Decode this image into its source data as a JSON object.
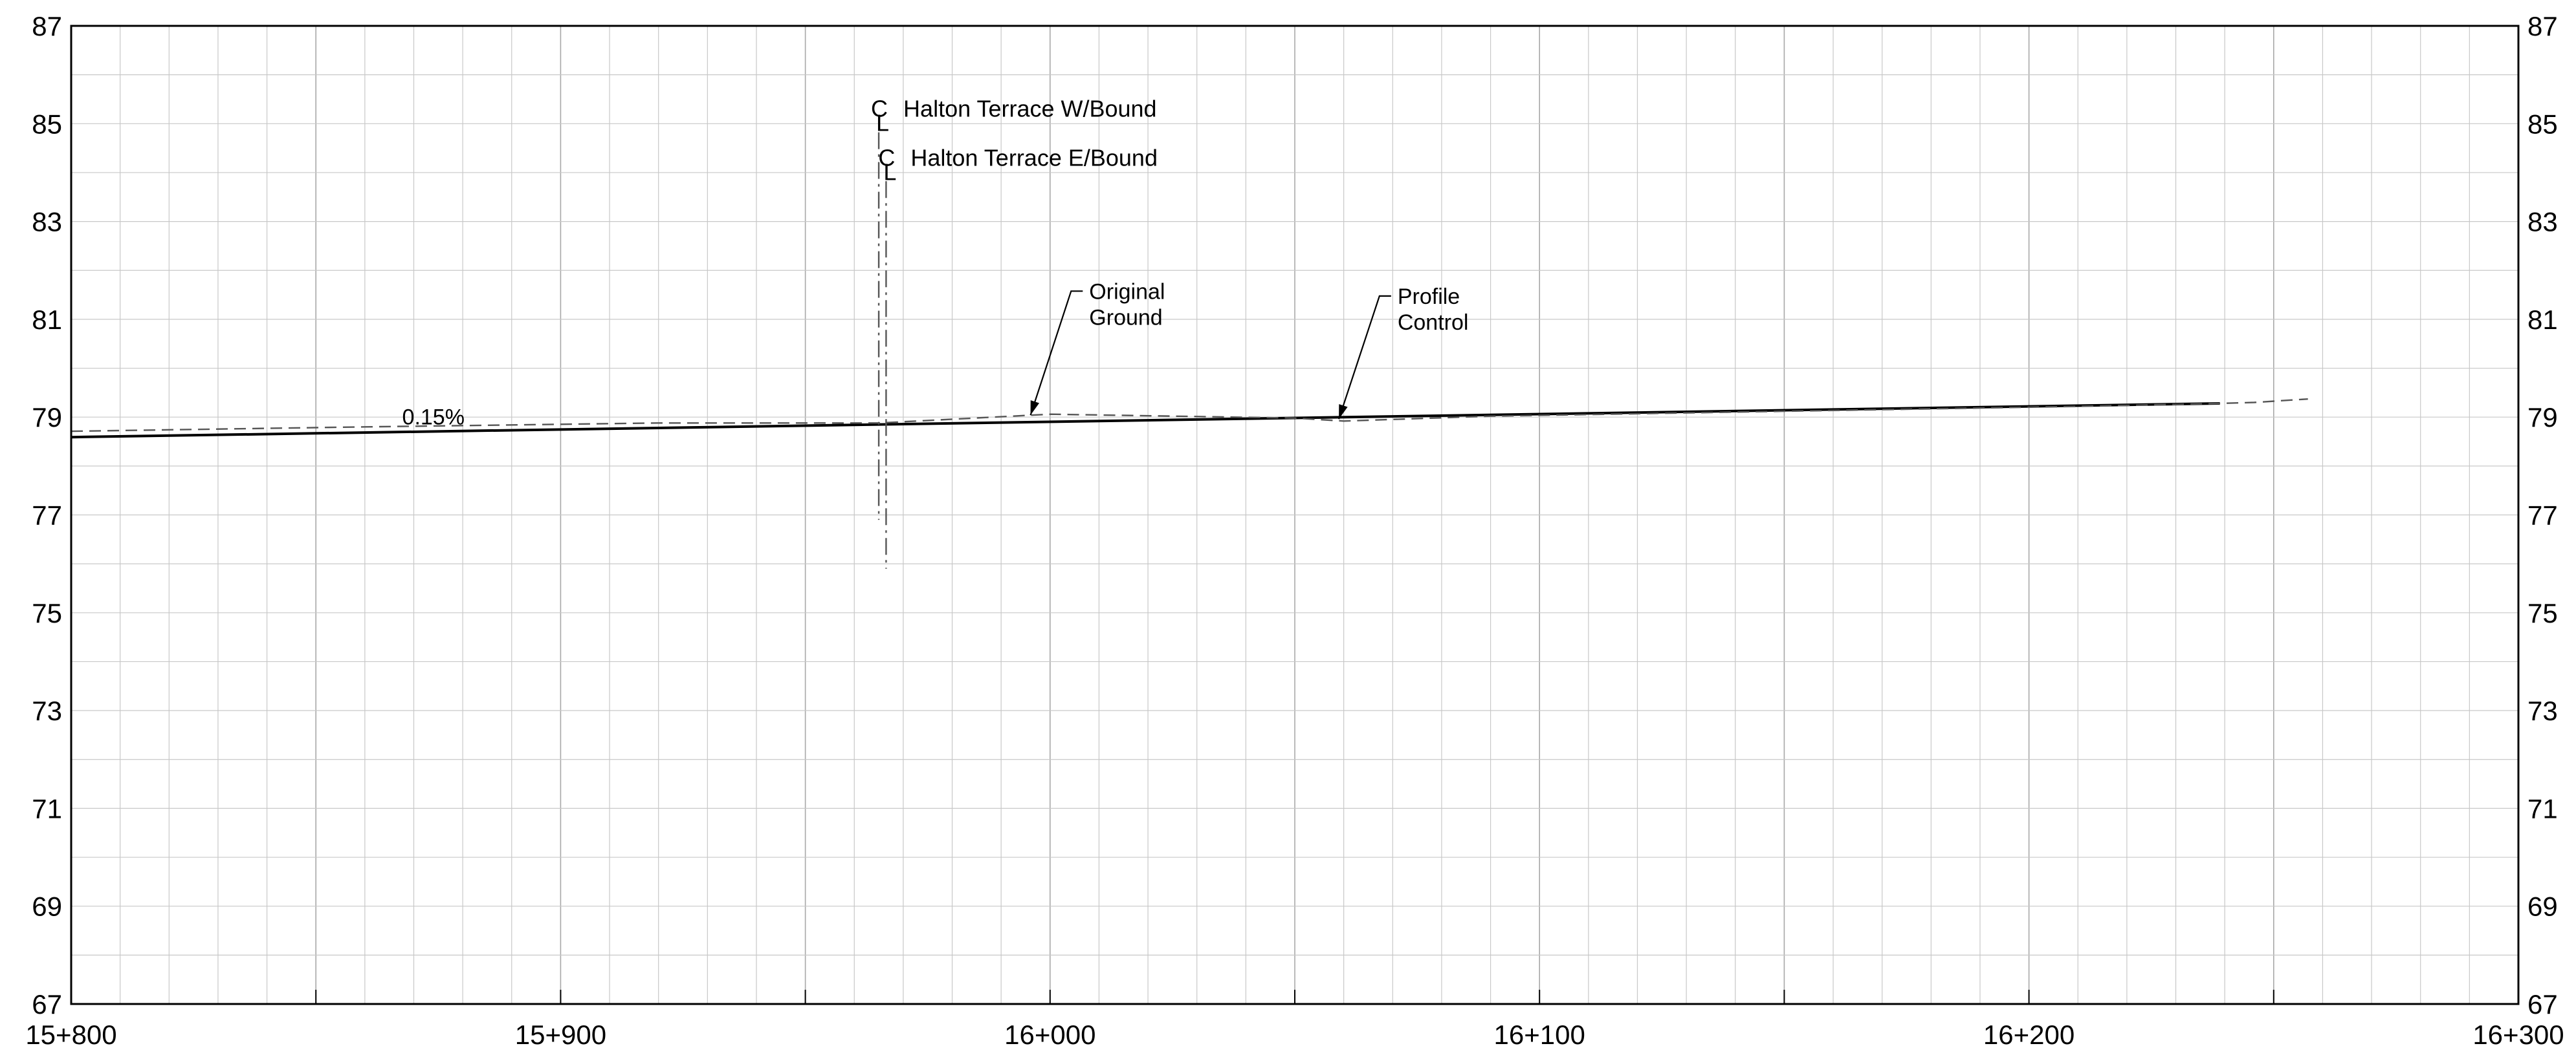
{
  "chart_data": {
    "type": "line",
    "title": "",
    "xlabel": "",
    "ylabel": "",
    "xlim": [
      15800,
      16300
    ],
    "ylim": [
      67,
      87
    ],
    "grid": true,
    "x_ticks": [
      {
        "value": 15800,
        "label": "15+800"
      },
      {
        "value": 15900,
        "label": "15+900"
      },
      {
        "value": 16000,
        "label": "16+000"
      },
      {
        "value": 16100,
        "label": "16+100"
      },
      {
        "value": 16200,
        "label": "16+200"
      },
      {
        "value": 16300,
        "label": "16+300"
      }
    ],
    "y_ticks": [
      {
        "value": 67,
        "label": "67"
      },
      {
        "value": 69,
        "label": "69"
      },
      {
        "value": 71,
        "label": "71"
      },
      {
        "value": 73,
        "label": "73"
      },
      {
        "value": 75,
        "label": "75"
      },
      {
        "value": 77,
        "label": "77"
      },
      {
        "value": 79,
        "label": "79"
      },
      {
        "value": 81,
        "label": "81"
      },
      {
        "value": 83,
        "label": "83"
      },
      {
        "value": 85,
        "label": "85"
      },
      {
        "value": 87,
        "label": "87"
      }
    ],
    "series": [
      {
        "label": "Profile Control",
        "style": "solid",
        "color": "#000000",
        "x": [
          15800,
          16239
        ],
        "y": [
          78.59,
          79.28
        ]
      },
      {
        "label": "Original Ground",
        "style": "dashed",
        "color": "#555555",
        "x": [
          15800,
          15860,
          15920,
          15965,
          16000,
          16050,
          16060,
          16090,
          16150,
          16210,
          16239,
          16246,
          16257
        ],
        "y": [
          78.71,
          78.8,
          78.88,
          78.88,
          79.06,
          78.98,
          78.92,
          79.02,
          79.12,
          79.22,
          79.28,
          79.3,
          79.37
        ]
      }
    ],
    "annotations": [
      {
        "text": "0.15%",
        "x": 15874,
        "y": 78.85
      },
      {
        "lines": [
          "Original",
          "Ground"
        ],
        "arrow_to": {
          "x": 15996,
          "y": 79.04
        },
        "x": 16008,
        "y": 81.1
      },
      {
        "lines": [
          "Profile",
          "Control"
        ],
        "arrow_to": {
          "x": 16059,
          "y": 78.96
        },
        "x": 16071,
        "y": 81.0
      }
    ],
    "centerlines": [
      {
        "symbol": "C",
        "sub": "L",
        "text": "Halton Terrace  W/Bound",
        "x": 15965,
        "y_top": 85.3,
        "y_bottom": 76.9
      },
      {
        "symbol": "C",
        "sub": "L",
        "text": "Halton Terrace  E/Bound",
        "x": 15966.5,
        "y_top": 84.3,
        "y_bottom": 75.9
      }
    ]
  }
}
